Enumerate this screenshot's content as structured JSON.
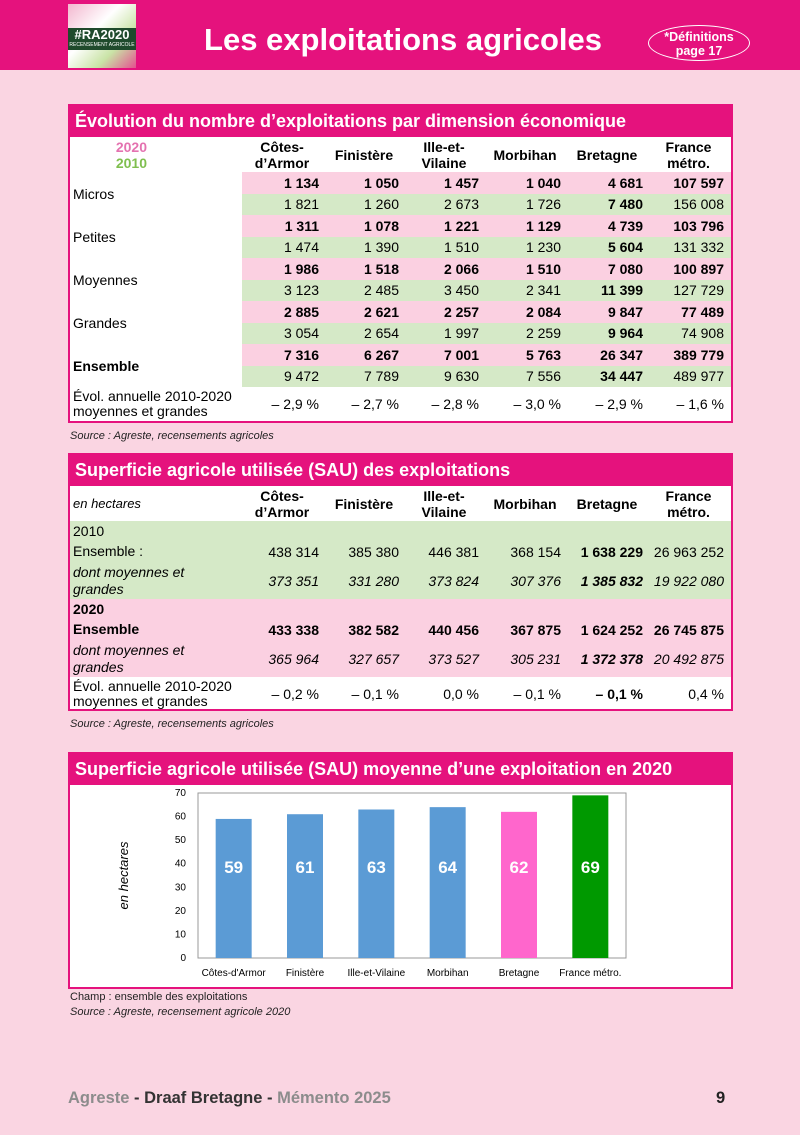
{
  "header": {
    "logo": {
      "title": "#RA2020",
      "subtitle": "RECENSEMENT AGRICOLE"
    },
    "title": "Les exploitations agricoles",
    "definitions": [
      "*Définitions",
      "page 17"
    ]
  },
  "table1": {
    "title": "Évolution du nombre d’exploitations par dimension économique",
    "legend_2020": "2020",
    "legend_2010": "2010",
    "columns": [
      [
        "Côtes-",
        "d’Armor"
      ],
      [
        "Finistère"
      ],
      [
        "Ille-et-",
        "Vilaine"
      ],
      [
        "Morbihan"
      ],
      [
        "Bretagne"
      ],
      [
        "France",
        "métro."
      ]
    ],
    "groups": [
      {
        "label": "Micros",
        "rows": [
          [
            "1 134",
            "1 050",
            "1 457",
            "1 040",
            "4 681",
            "107 597"
          ],
          [
            "1 821",
            "1 260",
            "2 673",
            "1 726",
            "7 480",
            "156 008"
          ]
        ]
      },
      {
        "label": "Petites",
        "rows": [
          [
            "1 311",
            "1 078",
            "1 221",
            "1 129",
            "4 739",
            "103 796"
          ],
          [
            "1 474",
            "1 390",
            "1 510",
            "1 230",
            "5 604",
            "131 332"
          ]
        ]
      },
      {
        "label": "Moyennes",
        "rows": [
          [
            "1 986",
            "1 518",
            "2 066",
            "1 510",
            "7 080",
            "100 897"
          ],
          [
            "3 123",
            "2 485",
            "3 450",
            "2 341",
            "11 399",
            "127 729"
          ]
        ]
      },
      {
        "label": "Grandes",
        "rows": [
          [
            "2 885",
            "2 621",
            "2 257",
            "2 084",
            "9 847",
            "77 489"
          ],
          [
            "3 054",
            "2 654",
            "1 997",
            "2 259",
            "9 964",
            "74 908"
          ]
        ]
      },
      {
        "label": "Ensemble",
        "rows": [
          [
            "7 316",
            "6 267",
            "7 001",
            "5 763",
            "26 347",
            "389 779"
          ],
          [
            "9 472",
            "7 789",
            "9 630",
            "7 556",
            "34 447",
            "489 977"
          ]
        ]
      }
    ],
    "evol": {
      "label": [
        "Évol. annuelle 2010-2020",
        "moyennes et grandes"
      ],
      "values": [
        "– 2,9 %",
        "– 2,7 %",
        "– 2,8 %",
        "– 3,0 %",
        "– 2,9 %",
        "– 1,6 %"
      ]
    },
    "source": "Source : Agreste, recensements agricoles"
  },
  "table2": {
    "title": "Superficie agricole utilisée (SAU) des exploitations",
    "unit": "en hectares",
    "columns": [
      [
        "Côtes-",
        "d’Armor"
      ],
      [
        "Finistère"
      ],
      [
        "Ille-et-",
        "Vilaine"
      ],
      [
        "Morbihan"
      ],
      [
        "Bretagne"
      ],
      [
        "France",
        "métro."
      ]
    ],
    "sections": [
      {
        "year": "2010",
        "rows": [
          {
            "label": [
              "Ensemble :"
            ],
            "values": [
              "438 314",
              "385 380",
              "446 381",
              "368 154",
              "1 638 229",
              "26 963 252"
            ]
          },
          {
            "label": [
              "dont moyennes et",
              "grandes"
            ],
            "values": [
              "373 351",
              "331 280",
              "373 824",
              "307 376",
              "1 385 832",
              "19 922 080"
            ]
          }
        ]
      },
      {
        "year": "2020",
        "rows": [
          {
            "label": [
              "Ensemble"
            ],
            "values": [
              "433 338",
              "382 582",
              "440 456",
              "367 875",
              "1 624 252",
              "26 745 875"
            ]
          },
          {
            "label": [
              "dont moyennes et",
              "grandes"
            ],
            "values": [
              "365 964",
              "327 657",
              "373 527",
              "305 231",
              "1 372 378",
              "20 492 875"
            ]
          }
        ]
      }
    ],
    "evol": {
      "label": [
        "Évol. annuelle 2010-2020",
        "moyennes et grandes"
      ],
      "values": [
        "– 0,2 %",
        "– 0,1 %",
        "0,0 %",
        "– 0,1 %",
        "– 0,1 %",
        "0,4 %"
      ]
    },
    "source": "Source : Agreste, recensements agricoles"
  },
  "chart_data": {
    "type": "bar",
    "title": "Superficie agricole utilisée (SAU) moyenne d’une exploitation en 2020",
    "ylabel": "en hectares",
    "categories": [
      "Côtes-d'Armor",
      "Finistère",
      "Ille-et-Vilaine",
      "Morbihan",
      "Bretagne",
      "France métro."
    ],
    "values": [
      59,
      61,
      63,
      64,
      62,
      69
    ],
    "colors": [
      "#5b9bd5",
      "#5b9bd5",
      "#5b9bd5",
      "#5b9bd5",
      "#ff66cc",
      "#009900"
    ],
    "ylim": [
      0,
      70
    ],
    "yticks": [
      0,
      10,
      20,
      30,
      40,
      50,
      60,
      70
    ],
    "notes": [
      "Champ : ensemble des exploitations",
      "Source : Agreste, recensement agricole 2020"
    ]
  },
  "footer": {
    "parts": [
      "Agreste",
      " - Draaf Bretagne - ",
      "Mémento 2025"
    ],
    "page": "9"
  }
}
